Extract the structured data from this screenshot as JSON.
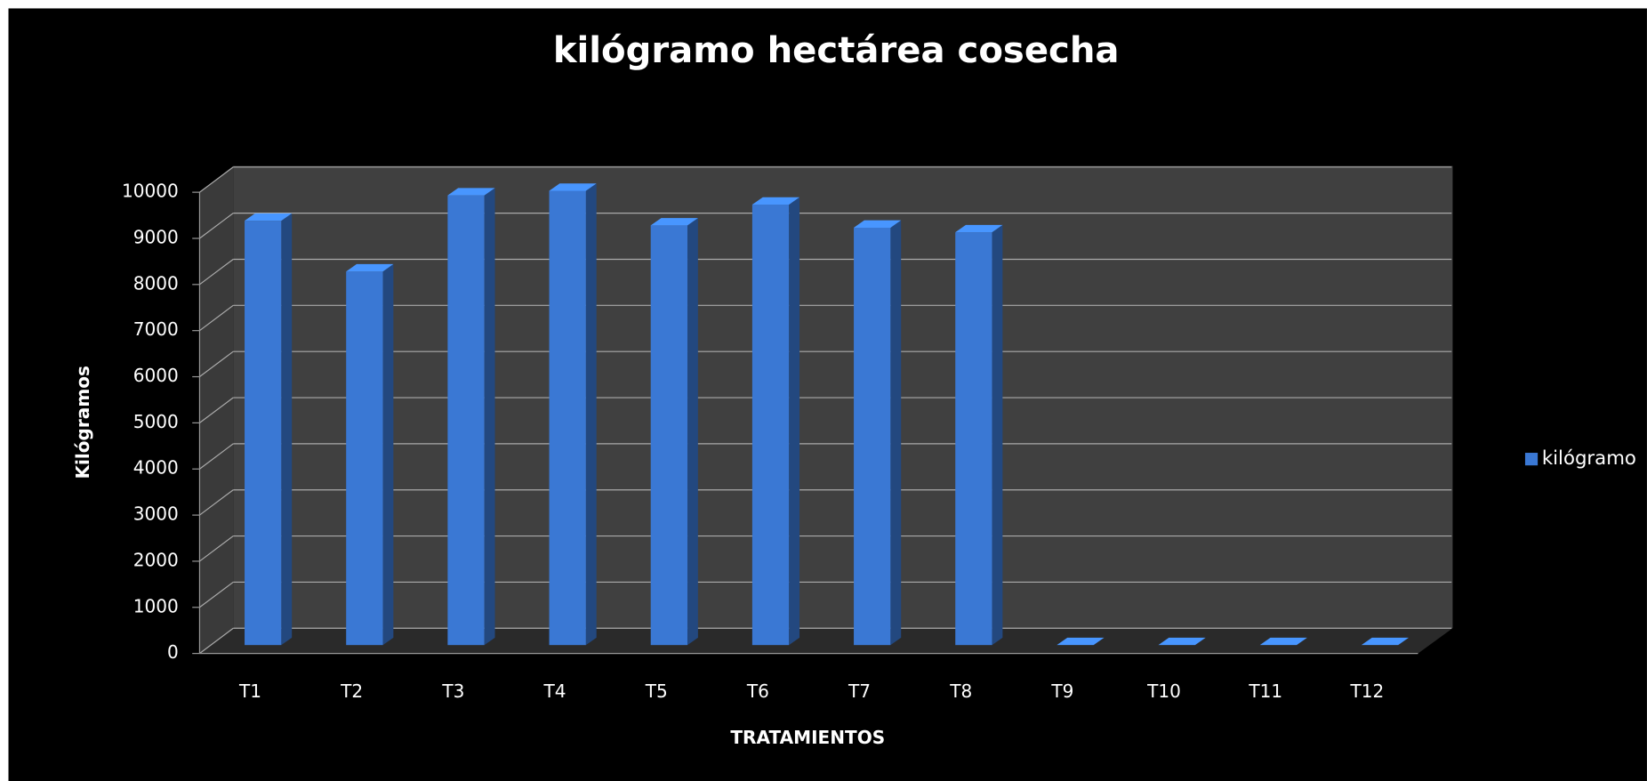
{
  "chart_data": {
    "type": "bar3d",
    "title": "kilógramo hectárea cosecha",
    "x_label": "TRATAMIENTOS",
    "y_label": "Kilógramos",
    "categories": [
      "T1",
      "T2",
      "T3",
      "T4",
      "T5",
      "T6",
      "T7",
      "T8",
      "T9",
      "T10",
      "T11",
      "T12"
    ],
    "series": [
      {
        "name": "kilógramo",
        "color": "#3a78d4",
        "values": [
          9200,
          8100,
          9750,
          9850,
          9100,
          9550,
          9050,
          8950,
          0,
          0,
          0,
          0
        ]
      }
    ],
    "ylim": [
      0,
      10000
    ],
    "yticks": [
      0,
      1000,
      2000,
      3000,
      4000,
      5000,
      6000,
      7000,
      8000,
      9000,
      10000
    ],
    "grid": true,
    "legend": "right"
  }
}
